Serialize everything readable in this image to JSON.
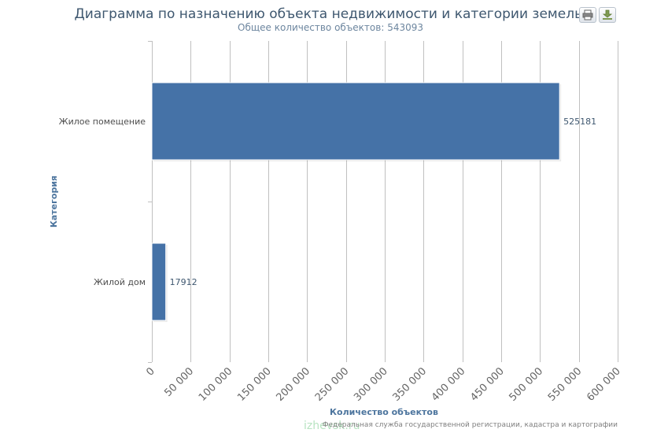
{
  "toolbar": {
    "print_icon": "printer-icon",
    "export_icon": "download-icon"
  },
  "watermark": "izhevsk.ru",
  "credits": "Федеральная служба государственной регистрации, кадастра и картографии",
  "colors": {
    "bar": "#4572a7",
    "grid": "#c0c0c0",
    "title": "#3e576f",
    "axis_title": "#4d759e"
  },
  "chart_data": {
    "type": "bar",
    "orientation": "horizontal",
    "title": "Диаграмма по назначению объекта недвижимости и категории земель.",
    "subtitle": "Общее количество объектов: 543093",
    "xlabel": "Количество объектов",
    "ylabel": "Категория",
    "categories": [
      "Жилое помещение",
      "Жилой дом"
    ],
    "values": [
      525181,
      17912
    ],
    "data_labels": [
      "525181",
      "17912"
    ],
    "xlim": [
      0,
      600000
    ],
    "x_ticks": [
      0,
      50000,
      100000,
      150000,
      200000,
      250000,
      300000,
      350000,
      400000,
      450000,
      500000,
      550000,
      600000
    ],
    "x_tick_labels": [
      "0",
      "50 000",
      "100 000",
      "150 000",
      "200 000",
      "250 000",
      "300 000",
      "350 000",
      "400 000",
      "450 000",
      "500 000",
      "550 000",
      "600 000"
    ],
    "grid": true,
    "legend": "none"
  }
}
